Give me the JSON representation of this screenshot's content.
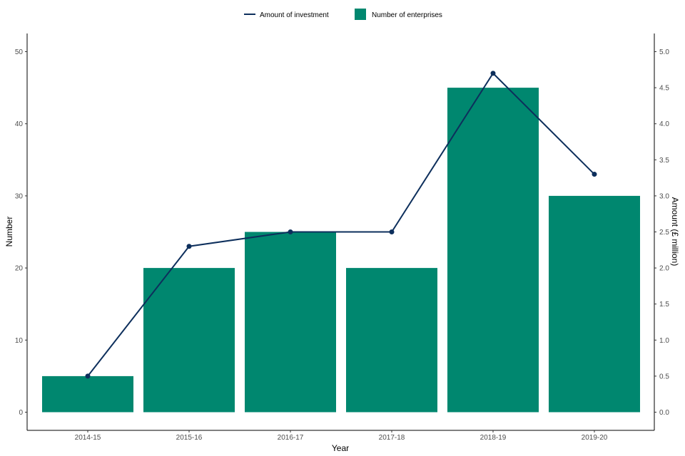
{
  "chart_data": {
    "type": "bar",
    "categories": [
      "2014-15",
      "2015-16",
      "2016-17",
      "2017-18",
      "2018-19",
      "2019-20"
    ],
    "series": [
      {
        "name": "Number of enterprises",
        "type": "bar",
        "axis": "left",
        "values": [
          5,
          20,
          25,
          20,
          45,
          30
        ],
        "color": "#00876f"
      },
      {
        "name": "Amount of investment",
        "type": "line",
        "axis": "right",
        "values": [
          0.5,
          2.3,
          2.5,
          2.5,
          4.7,
          3.3
        ],
        "color": "#0d2f5c"
      }
    ],
    "xlabel": "Year",
    "ylabel": "Number",
    "y2label": "Amount (£ million)",
    "ylim": [
      0,
      50
    ],
    "y2lim": [
      0,
      5
    ],
    "yticks": [
      "0",
      "10",
      "20",
      "30",
      "40",
      "50"
    ],
    "y2ticks": [
      "0.0",
      "0.5",
      "1.0",
      "1.5",
      "2.0",
      "2.5",
      "3.0",
      "3.5",
      "4.0",
      "4.5",
      "5.0"
    ],
    "grid": false,
    "legend_position": "top-center",
    "legend": [
      "Amount of investment",
      "Number of enterprises"
    ]
  }
}
